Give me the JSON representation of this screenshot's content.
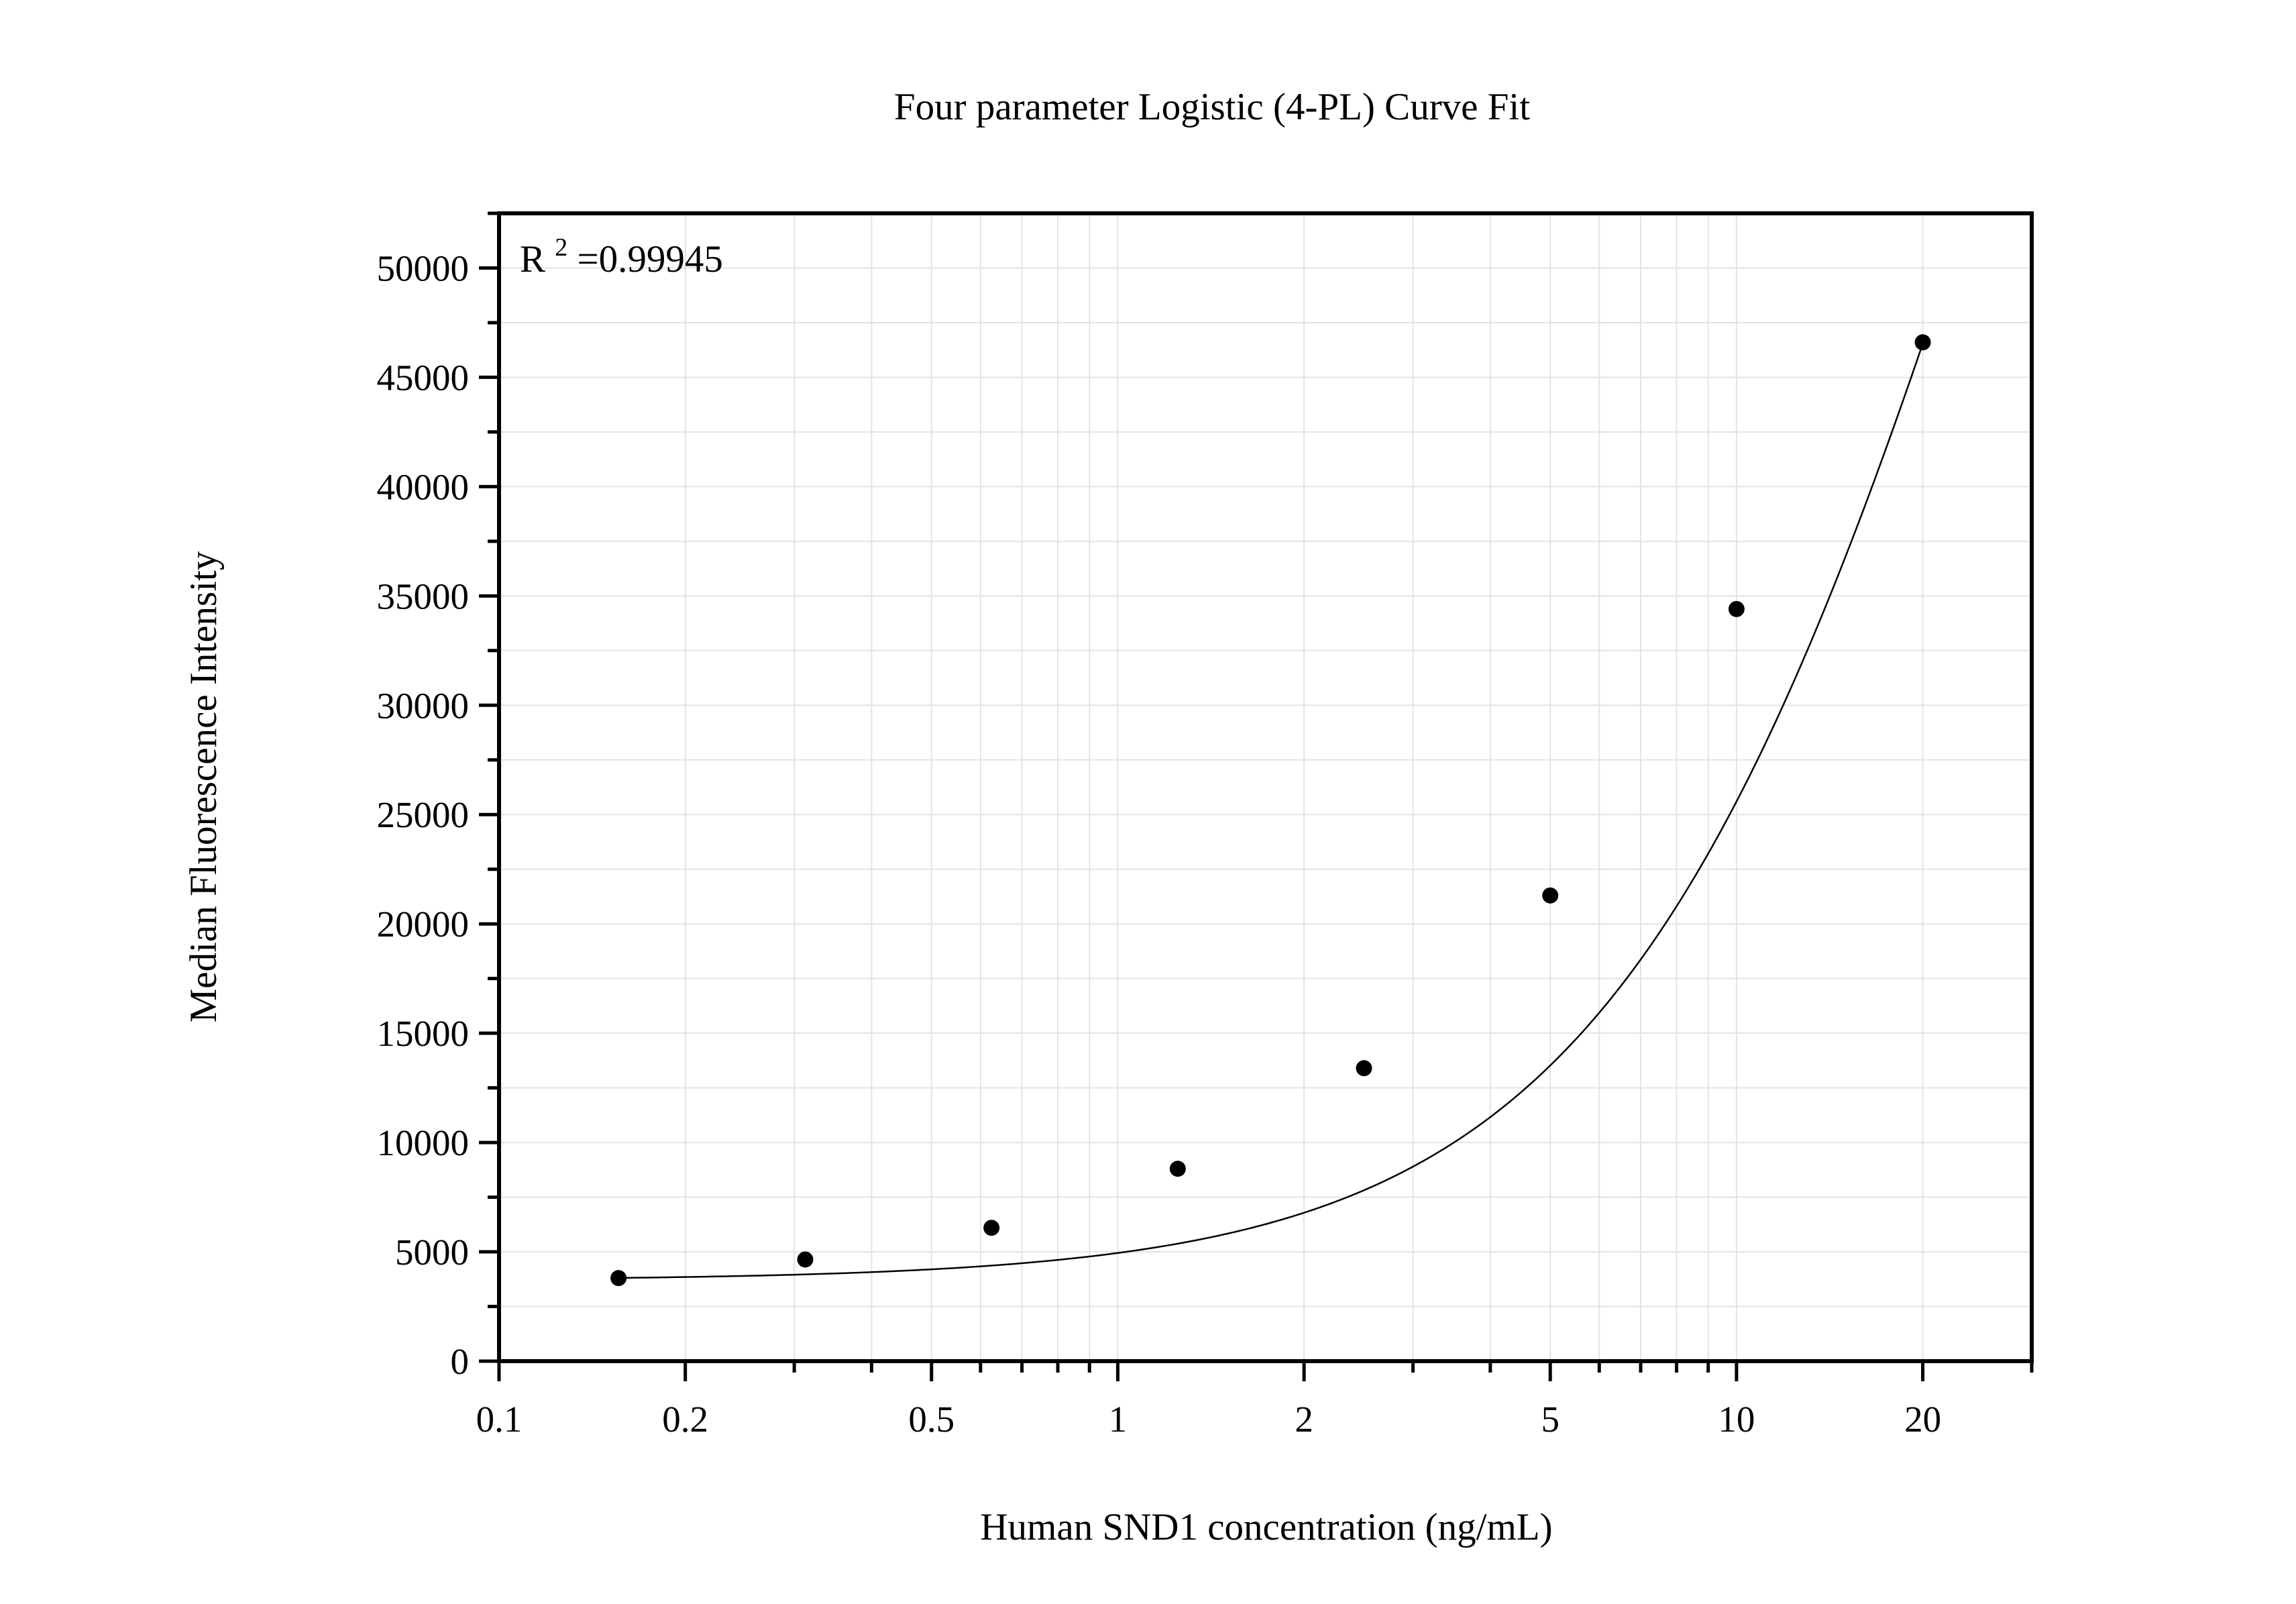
{
  "chart_data": {
    "type": "scatter",
    "title": "Four parameter Logistic (4-PL) Curve Fit",
    "xlabel": "Human SND1 concentration (ng/mL)",
    "ylabel": "Median Fluorescence Intensity",
    "x_scale": "log",
    "xlim": [
      0.1,
      30
    ],
    "ylim": [
      0,
      52500
    ],
    "x_ticks": [
      0.1,
      0.2,
      0.5,
      1,
      2,
      5,
      10,
      20
    ],
    "x_tick_labels": [
      "0.1",
      "0.2",
      "0.5",
      "1",
      "2",
      "5",
      "10",
      "20"
    ],
    "y_ticks": [
      0,
      5000,
      10000,
      15000,
      20000,
      25000,
      30000,
      35000,
      40000,
      45000,
      50000
    ],
    "y_tick_labels": [
      "0",
      "5000",
      "10000",
      "15000",
      "20000",
      "25000",
      "30000",
      "35000",
      "40000",
      "45000",
      "50000"
    ],
    "grid": true,
    "annotation": {
      "label": "R",
      "superscript": "2",
      "value": "=0.99945"
    },
    "series": [
      {
        "kind": "points",
        "x": [
          0.156,
          0.3125,
          0.625,
          1.25,
          2.5,
          5,
          10,
          20
        ],
        "y": [
          3800,
          4650,
          6100,
          8800,
          13400,
          21300,
          34400,
          46600
        ]
      },
      {
        "kind": "fit",
        "model": "4-PL",
        "params": {
          "A": 3700,
          "D": 120000,
          "C": 30,
          "B": 1.33
        },
        "x_range": [
          0.156,
          20
        ]
      }
    ]
  }
}
